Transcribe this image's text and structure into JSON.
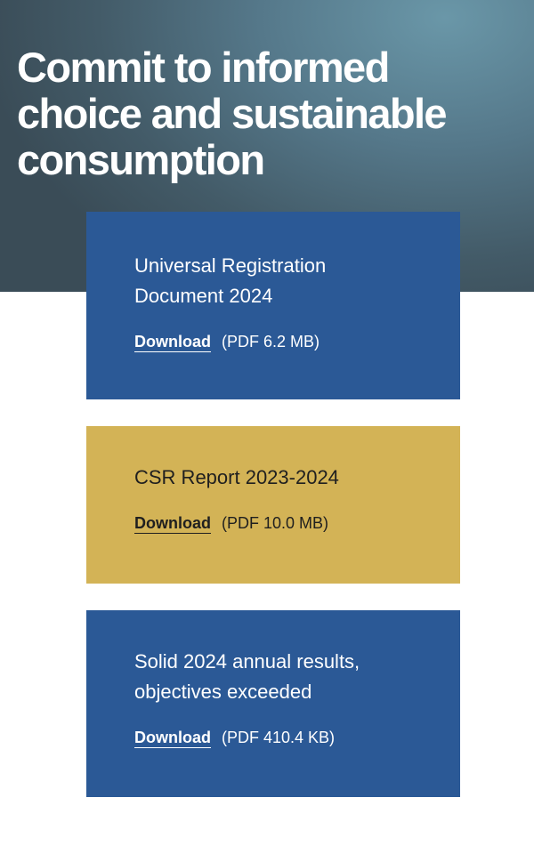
{
  "hero": {
    "title_lines": [
      "Commit to informed",
      "choice and sustainable",
      "consumption"
    ]
  },
  "documents": [
    {
      "title_lines": [
        "Universal Registration",
        "Document 2024"
      ],
      "download_label": "Download",
      "file_info": "(PDF 6.2 MB)",
      "color": "#2b5996"
    },
    {
      "title_lines": [
        "CSR Report 2023-2024"
      ],
      "download_label": "Download",
      "file_info": "(PDF 10.0 MB)",
      "color": "#d3b356"
    },
    {
      "title_lines": [
        "Solid 2024 annual results,",
        "objectives exceeded"
      ],
      "download_label": "Download",
      "file_info": "(PDF 410.4 KB)",
      "color": "#2b5996"
    }
  ]
}
